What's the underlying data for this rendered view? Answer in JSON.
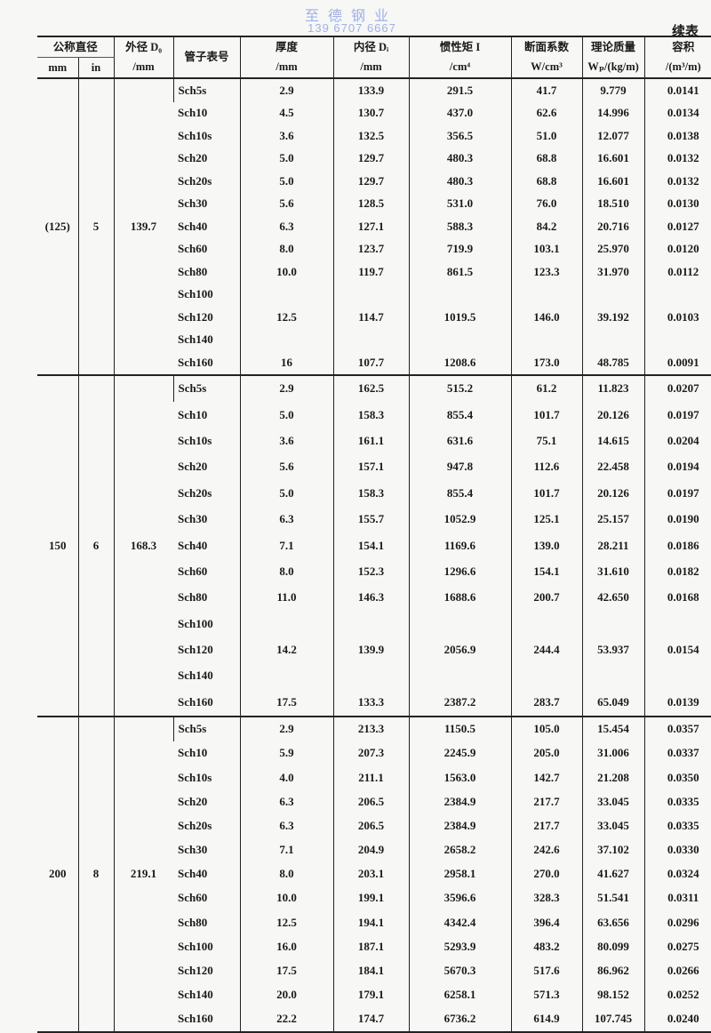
{
  "watermark": {
    "company": "至德钢业",
    "phone": "139 6707 6667"
  },
  "continued_label": "续表",
  "headers": {
    "nominal": "公称直径",
    "mm": "mm",
    "in": "in",
    "od": "外径 D₀",
    "od_unit": "/mm",
    "schedule": "管子表号",
    "thickness": "厚度",
    "thickness_unit": "/mm",
    "id": "内径 Dᵢ",
    "id_unit": "/mm",
    "inertia": "惯性矩 I",
    "inertia_unit": "/cm⁴",
    "section": "断面系数",
    "section_unit": "W/cm³",
    "mass": "理论质量",
    "mass_unit": "Wₚ/(kg/m)",
    "volume": "容积",
    "volume_unit": "/(m³/m)"
  },
  "groups": [
    {
      "mm": "(125)",
      "in": "5",
      "od": "139.7",
      "rows": [
        [
          "Sch5s",
          "2.9",
          "133.9",
          "291.5",
          "41.7",
          "9.779",
          "0.0141"
        ],
        [
          "Sch10",
          "4.5",
          "130.7",
          "437.0",
          "62.6",
          "14.996",
          "0.0134"
        ],
        [
          "Sch10s",
          "3.6",
          "132.5",
          "356.5",
          "51.0",
          "12.077",
          "0.0138"
        ],
        [
          "Sch20",
          "5.0",
          "129.7",
          "480.3",
          "68.8",
          "16.601",
          "0.0132"
        ],
        [
          "Sch20s",
          "5.0",
          "129.7",
          "480.3",
          "68.8",
          "16.601",
          "0.0132"
        ],
        [
          "Sch30",
          "5.6",
          "128.5",
          "531.0",
          "76.0",
          "18.510",
          "0.0130"
        ],
        [
          "Sch40",
          "6.3",
          "127.1",
          "588.3",
          "84.2",
          "20.716",
          "0.0127"
        ],
        [
          "Sch60",
          "8.0",
          "123.7",
          "719.9",
          "103.1",
          "25.970",
          "0.0120"
        ],
        [
          "Sch80",
          "10.0",
          "119.7",
          "861.5",
          "123.3",
          "31.970",
          "0.0112"
        ],
        [
          "Sch100",
          "",
          "",
          "",
          "",
          "",
          ""
        ],
        [
          "Sch120",
          "12.5",
          "114.7",
          "1019.5",
          "146.0",
          "39.192",
          "0.0103"
        ],
        [
          "Sch140",
          "",
          "",
          "",
          "",
          "",
          ""
        ],
        [
          "Sch160",
          "16",
          "107.7",
          "1208.6",
          "173.0",
          "48.785",
          "0.0091"
        ]
      ]
    },
    {
      "mm": "150",
      "in": "6",
      "od": "168.3",
      "rows": [
        [
          "Sch5s",
          "2.9",
          "162.5",
          "515.2",
          "61.2",
          "11.823",
          "0.0207"
        ],
        [
          "Sch10",
          "5.0",
          "158.3",
          "855.4",
          "101.7",
          "20.126",
          "0.0197"
        ],
        [
          "Sch10s",
          "3.6",
          "161.1",
          "631.6",
          "75.1",
          "14.615",
          "0.0204"
        ],
        [
          "Sch20",
          "5.6",
          "157.1",
          "947.8",
          "112.6",
          "22.458",
          "0.0194"
        ],
        [
          "Sch20s",
          "5.0",
          "158.3",
          "855.4",
          "101.7",
          "20.126",
          "0.0197"
        ],
        [
          "Sch30",
          "6.3",
          "155.7",
          "1052.9",
          "125.1",
          "25.157",
          "0.0190"
        ],
        [
          "Sch40",
          "7.1",
          "154.1",
          "1169.6",
          "139.0",
          "28.211",
          "0.0186"
        ],
        [
          "Sch60",
          "8.0",
          "152.3",
          "1296.6",
          "154.1",
          "31.610",
          "0.0182"
        ],
        [
          "Sch80",
          "11.0",
          "146.3",
          "1688.6",
          "200.7",
          "42.650",
          "0.0168"
        ],
        [
          "Sch100",
          "",
          "",
          "",
          "",
          "",
          ""
        ],
        [
          "Sch120",
          "14.2",
          "139.9",
          "2056.9",
          "244.4",
          "53.937",
          "0.0154"
        ],
        [
          "Sch140",
          "",
          "",
          "",
          "",
          "",
          ""
        ],
        [
          "Sch160",
          "17.5",
          "133.3",
          "2387.2",
          "283.7",
          "65.049",
          "0.0139"
        ]
      ]
    },
    {
      "mm": "200",
      "in": "8",
      "od": "219.1",
      "rows": [
        [
          "Sch5s",
          "2.9",
          "213.3",
          "1150.5",
          "105.0",
          "15.454",
          "0.0357"
        ],
        [
          "Sch10",
          "5.9",
          "207.3",
          "2245.9",
          "205.0",
          "31.006",
          "0.0337"
        ],
        [
          "Sch10s",
          "4.0",
          "211.1",
          "1563.0",
          "142.7",
          "21.208",
          "0.0350"
        ],
        [
          "Sch20",
          "6.3",
          "206.5",
          "2384.9",
          "217.7",
          "33.045",
          "0.0335"
        ],
        [
          "Sch20s",
          "6.3",
          "206.5",
          "2384.9",
          "217.7",
          "33.045",
          "0.0335"
        ],
        [
          "Sch30",
          "7.1",
          "204.9",
          "2658.2",
          "242.6",
          "37.102",
          "0.0330"
        ],
        [
          "Sch40",
          "8.0",
          "203.1",
          "2958.1",
          "270.0",
          "41.627",
          "0.0324"
        ],
        [
          "Sch60",
          "10.0",
          "199.1",
          "3596.6",
          "328.3",
          "51.541",
          "0.0311"
        ],
        [
          "Sch80",
          "12.5",
          "194.1",
          "4342.4",
          "396.4",
          "63.656",
          "0.0296"
        ],
        [
          "Sch100",
          "16.0",
          "187.1",
          "5293.9",
          "483.2",
          "80.099",
          "0.0275"
        ],
        [
          "Sch120",
          "17.5",
          "184.1",
          "5670.3",
          "517.6",
          "86.962",
          "0.0266"
        ],
        [
          "Sch140",
          "20.0",
          "179.1",
          "6258.1",
          "571.3",
          "98.152",
          "0.0252"
        ],
        [
          "Sch160",
          "22.2",
          "174.7",
          "6736.2",
          "614.9",
          "107.745",
          "0.0240"
        ]
      ]
    }
  ]
}
